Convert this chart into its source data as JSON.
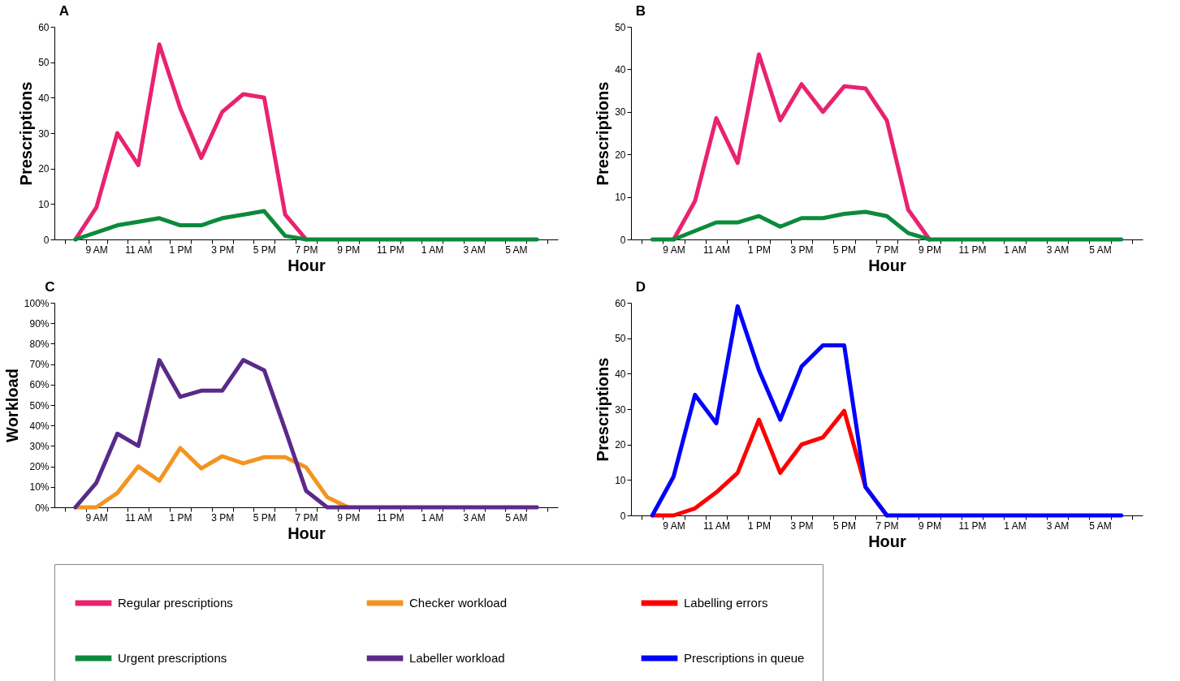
{
  "chart_data": [
    {
      "type": "line",
      "title": "A",
      "xlabel": "Hour",
      "ylabel": "Prescriptions",
      "categories": [
        null,
        "9 AM",
        null,
        "11 AM",
        null,
        "1 PM",
        null,
        "3 PM",
        null,
        "5 PM",
        null,
        "7 PM",
        null,
        "9 PM",
        null,
        "11 PM",
        null,
        "1 AM",
        null,
        "3 AM",
        null,
        "5 AM",
        null
      ],
      "ylim": [
        0,
        60
      ],
      "yticks": [
        0,
        10,
        20,
        30,
        40,
        50,
        60
      ],
      "grid": false,
      "legend": "bottom",
      "line_style": "solid",
      "series": [
        {
          "name": "Regular prescriptions",
          "color": "#e8236f",
          "values": [
            0,
            9,
            30,
            21,
            55,
            37,
            23,
            36,
            41,
            40,
            7,
            0,
            null,
            null,
            null,
            null,
            null,
            null,
            null,
            null,
            null,
            null,
            null
          ]
        },
        {
          "name": "Urgent prescriptions",
          "color": "#0c8a3c",
          "values": [
            0,
            2,
            4,
            5,
            6,
            4,
            4,
            6,
            7,
            8,
            1,
            0,
            0,
            0,
            0,
            0,
            0,
            0,
            0,
            0,
            0,
            0,
            0
          ]
        }
      ]
    },
    {
      "type": "line",
      "title": "B",
      "xlabel": "Hour",
      "ylabel": "Prescriptions",
      "categories": [
        null,
        "9 AM",
        null,
        "11 AM",
        null,
        "1 PM",
        null,
        "3 PM",
        null,
        "5 PM",
        null,
        "7 PM",
        null,
        "9 PM",
        null,
        "11 PM",
        null,
        "1 AM",
        null,
        "3 AM",
        null,
        "5 AM",
        null
      ],
      "ylim": [
        0,
        50
      ],
      "yticks": [
        0,
        10,
        20,
        30,
        40,
        50
      ],
      "grid": false,
      "legend": "bottom",
      "line_style": "solid",
      "series": [
        {
          "name": "Regular prescriptions",
          "color": "#e8236f",
          "values": [
            null,
            0,
            9,
            28.5,
            18,
            43.5,
            28,
            36.5,
            30,
            36,
            35.5,
            28,
            7,
            0,
            null,
            null,
            null,
            null,
            null,
            null,
            null,
            null,
            null
          ]
        },
        {
          "name": "Urgent prescriptions",
          "color": "#0c8a3c",
          "values": [
            0,
            0,
            2,
            4,
            4,
            5.5,
            3,
            5,
            5,
            6,
            6.5,
            5.5,
            1.5,
            0,
            0,
            0,
            0,
            0,
            0,
            0,
            0,
            0,
            0
          ]
        }
      ]
    },
    {
      "type": "line",
      "title": "C",
      "xlabel": "Hour",
      "ylabel": "Workload",
      "categories": [
        null,
        "9 AM",
        null,
        "11 AM",
        null,
        "1 PM",
        null,
        "3 PM",
        null,
        "5 PM",
        null,
        "7 PM",
        null,
        "9 PM",
        null,
        "11 PM",
        null,
        "1 AM",
        null,
        "3 AM",
        null,
        "5 AM",
        null
      ],
      "ylim": [
        0,
        100
      ],
      "yticks": [
        {
          "value": 0,
          "label": "0%"
        },
        {
          "value": 10,
          "label": "10%"
        },
        {
          "value": 20,
          "label": "20%"
        },
        {
          "value": 30,
          "label": "30%"
        },
        {
          "value": 40,
          "label": "40%"
        },
        {
          "value": 50,
          "label": "50%"
        },
        {
          "value": 60,
          "label": "60%"
        },
        {
          "value": 70,
          "label": "70%"
        },
        {
          "value": 80,
          "label": "80%"
        },
        {
          "value": 90,
          "label": "90%"
        },
        {
          "value": 100,
          "label": "100%"
        }
      ],
      "grid": false,
      "legend": "bottom",
      "line_style": "solid",
      "series": [
        {
          "name": "Checker workload",
          "color": "#f39422",
          "values": [
            0,
            0,
            7,
            20,
            13,
            29,
            19,
            25,
            21.5,
            24.5,
            24.5,
            19.5,
            5,
            0,
            null,
            null,
            null,
            null,
            null,
            null,
            null,
            null,
            null
          ]
        },
        {
          "name": "Labeller workload",
          "color": "#5a2a8a",
          "values": [
            0,
            12,
            36,
            30,
            72,
            54,
            57,
            57,
            72,
            67,
            38,
            8,
            0,
            0,
            0,
            0,
            0,
            0,
            0,
            0,
            0,
            0,
            0
          ]
        }
      ]
    },
    {
      "type": "line",
      "title": "D",
      "xlabel": "Hour",
      "ylabel": "Prescriptions",
      "categories": [
        null,
        "9 AM",
        null,
        "11 AM",
        null,
        "1 PM",
        null,
        "3 PM",
        null,
        "5 PM",
        null,
        "7 PM",
        null,
        "9 PM",
        null,
        "11 PM",
        null,
        "1 AM",
        null,
        "3 AM",
        null,
        "5 AM",
        null
      ],
      "ylim": [
        0,
        60
      ],
      "yticks": [
        0,
        10,
        20,
        30,
        40,
        50,
        60
      ],
      "grid": false,
      "legend": "bottom",
      "line_style": "solid",
      "series": [
        {
          "name": "Labelling errors",
          "color": "#ff0000",
          "values": [
            0,
            0,
            2,
            6.5,
            12,
            27,
            12,
            20,
            22,
            29.5,
            8,
            0,
            null,
            null,
            null,
            null,
            null,
            null,
            null,
            null,
            null,
            null,
            null
          ]
        },
        {
          "name": "Prescriptions in queue",
          "color": "#0000ff",
          "values": [
            0,
            11,
            34,
            26,
            59,
            41,
            27,
            42,
            48,
            48,
            8,
            0,
            0,
            0,
            0,
            0,
            0,
            0,
            0,
            0,
            0,
            0,
            0
          ]
        }
      ]
    }
  ]
}
